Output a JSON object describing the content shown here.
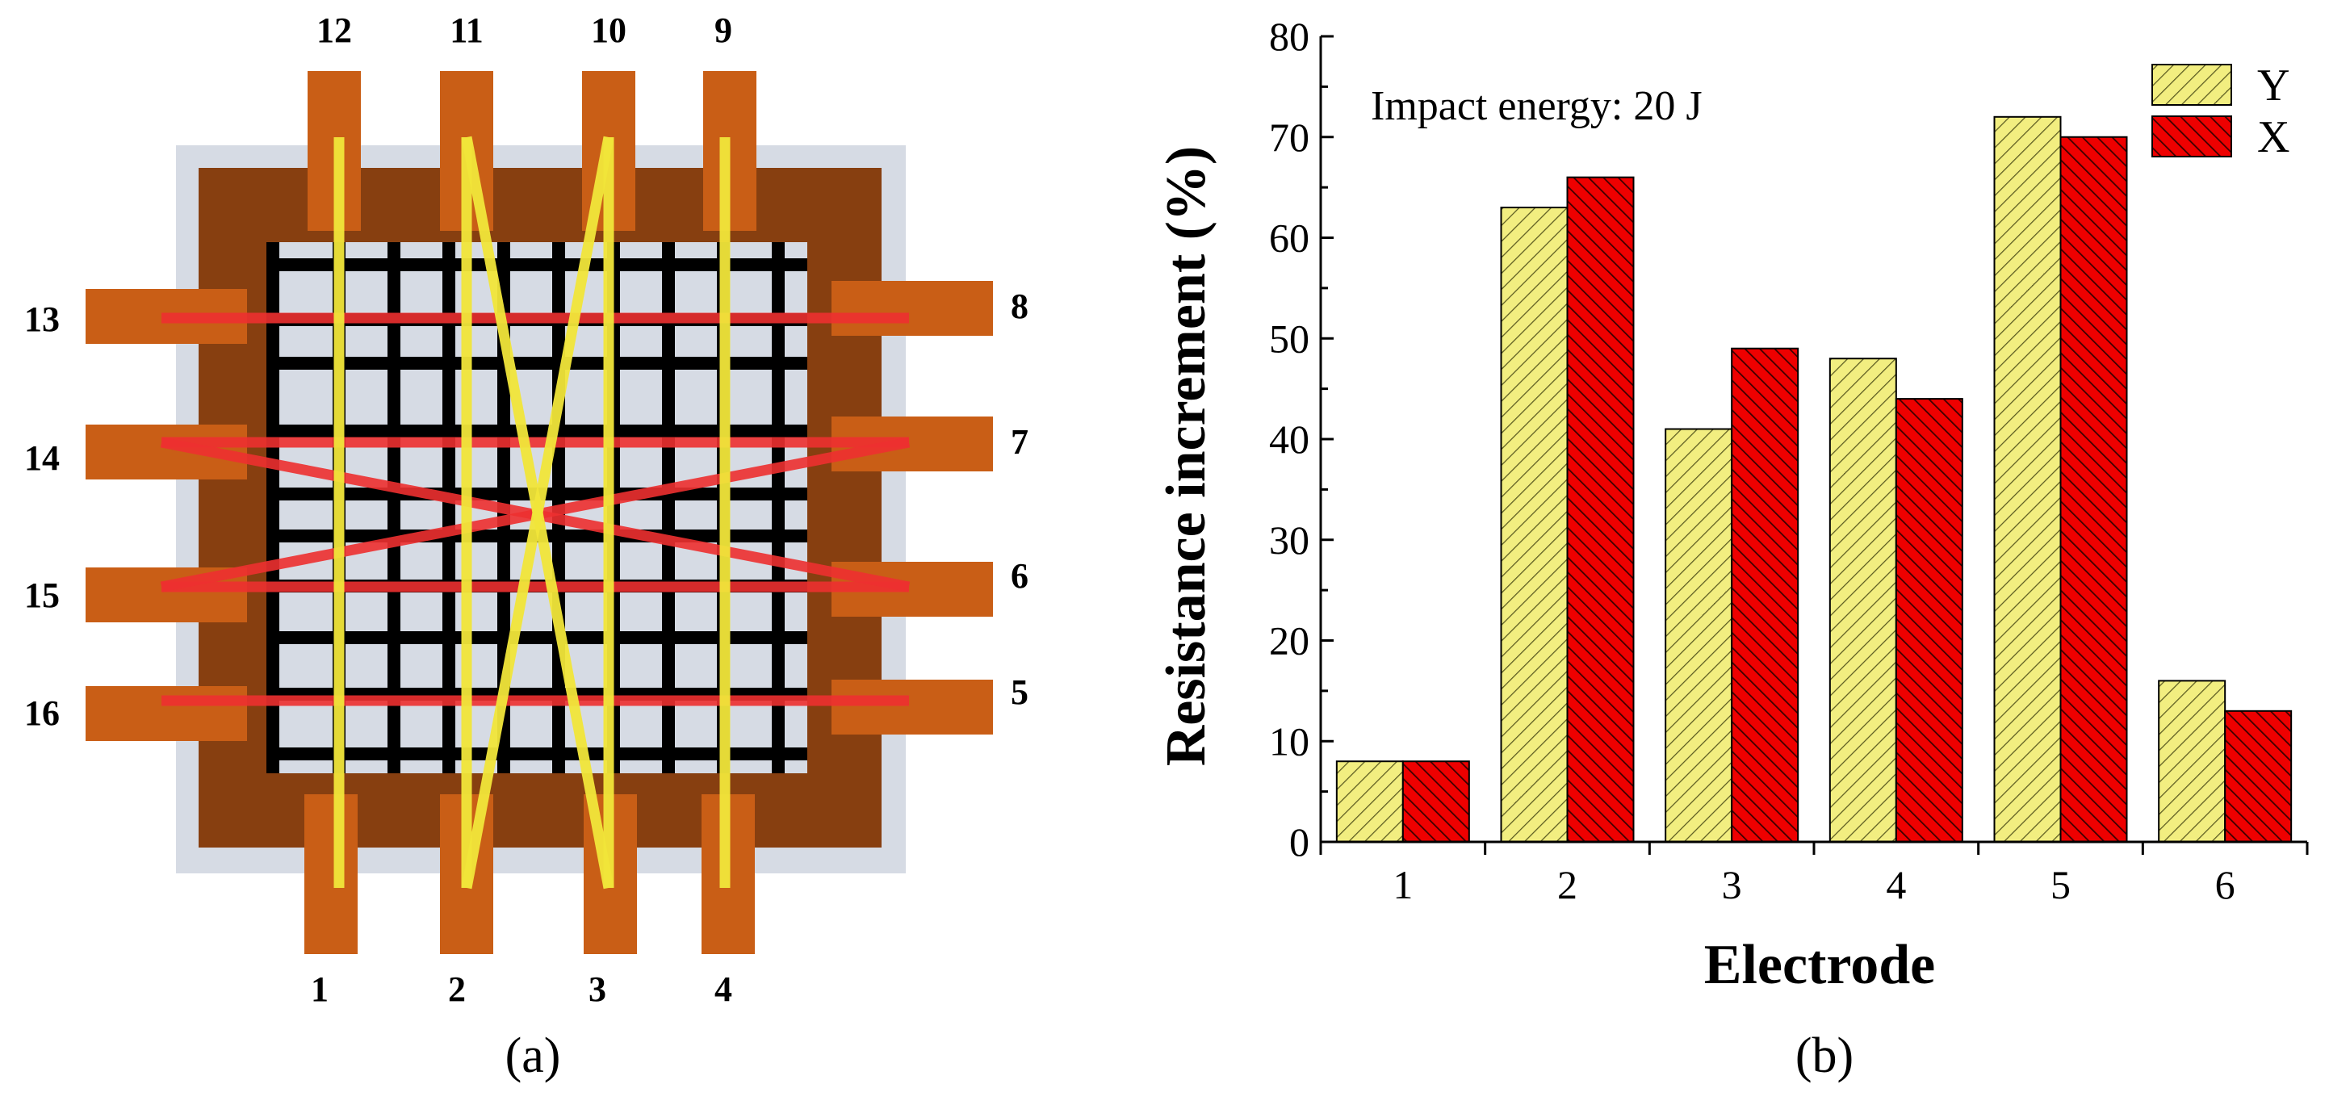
{
  "panel_a": {
    "caption": "(a)",
    "electrode_labels": {
      "bottom": [
        "1",
        "2",
        "3",
        "4"
      ],
      "right": [
        "5",
        "6",
        "7",
        "8"
      ],
      "top": [
        "9",
        "10",
        "11",
        "12"
      ],
      "left": [
        "13",
        "14",
        "15",
        "16"
      ]
    },
    "colors": {
      "frame_outer": "#d6dbe4",
      "frame_inner": "#873f10",
      "grid_background": "#d6dbe4",
      "grid_lines": "#000000",
      "electrode": "#c95e16",
      "wire_y": "#f2e63a",
      "wire_x": "#ee3030"
    }
  },
  "panel_b": {
    "caption": "(b)",
    "annotation": "Impact energy: 20 J",
    "colors": {
      "Y": "#f2ee80",
      "X": "#ee0000"
    }
  },
  "chart_data": {
    "type": "bar",
    "title": "",
    "xlabel": "Electrode",
    "ylabel": "Resistance increment (%)",
    "categories": [
      "1",
      "2",
      "3",
      "4",
      "5",
      "6"
    ],
    "series": [
      {
        "name": "Y",
        "values": [
          8,
          63,
          41,
          48,
          72,
          16
        ]
      },
      {
        "name": "X",
        "values": [
          8,
          66,
          49,
          44,
          70,
          13
        ]
      }
    ],
    "ylim": [
      0,
      80
    ],
    "yticks": [
      "0",
      "10",
      "20",
      "30",
      "40",
      "50",
      "60",
      "70",
      "80"
    ],
    "legend": "top-right",
    "grid": false
  }
}
